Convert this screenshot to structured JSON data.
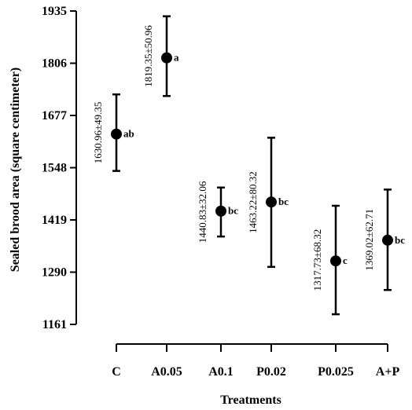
{
  "chart_data": {
    "type": "scatter",
    "xlabel": "Treatments",
    "ylabel": "Sealed brood area (square centimeter)",
    "ylim": [
      1161,
      1935
    ],
    "yticks": [
      "1935",
      "1806",
      "1677",
      "1548",
      "1419",
      "1290",
      "1161"
    ],
    "categories": [
      "C",
      "A0.05",
      "A0.1",
      "P0.02",
      "P0.025",
      "A+P"
    ],
    "grid": false,
    "points": [
      {
        "category": "C",
        "mean": 1630.96,
        "err_low": 1540,
        "err_high": 1729,
        "label": "1630.96±49.35",
        "group": "ab"
      },
      {
        "category": "A0.05",
        "mean": 1819.35,
        "err_low": 1725,
        "err_high": 1922,
        "label": "1819.35±50.96",
        "group": "a"
      },
      {
        "category": "A0.1",
        "mean": 1440.83,
        "err_low": 1378,
        "err_high": 1499,
        "label": "1440.83±32.06",
        "group": "bc"
      },
      {
        "category": "P0.02",
        "mean": 1463.22,
        "err_low": 1303,
        "err_high": 1622,
        "label": "1463.22±80.32",
        "group": "bc"
      },
      {
        "category": "P0.025",
        "mean": 1317.73,
        "err_low": 1186,
        "err_high": 1454,
        "label": "1317.73±68.32",
        "group": "c"
      },
      {
        "category": "A+P",
        "mean": 1369.02,
        "err_low": 1246,
        "err_high": 1494,
        "label": "1369.02±62.71",
        "group": "bc"
      }
    ]
  }
}
